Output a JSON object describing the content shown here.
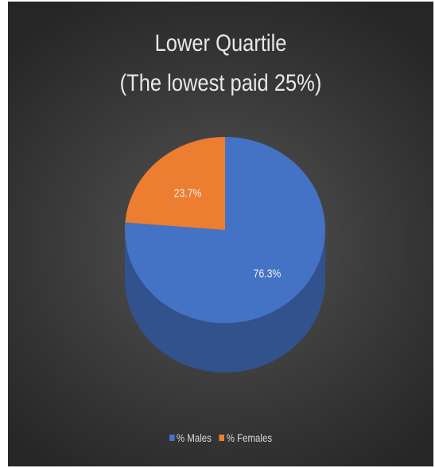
{
  "chart_data": {
    "type": "pie",
    "title": "Lower Quartile",
    "subtitle": "(The lowest paid 25%)",
    "categories": [
      "% Males",
      "% Females"
    ],
    "values": [
      76.3,
      23.7
    ],
    "data_labels": [
      "76.3%",
      "23.7%"
    ],
    "colors": [
      "#4472c4",
      "#ed7d31"
    ],
    "style": "3d",
    "legend_position": "bottom"
  }
}
